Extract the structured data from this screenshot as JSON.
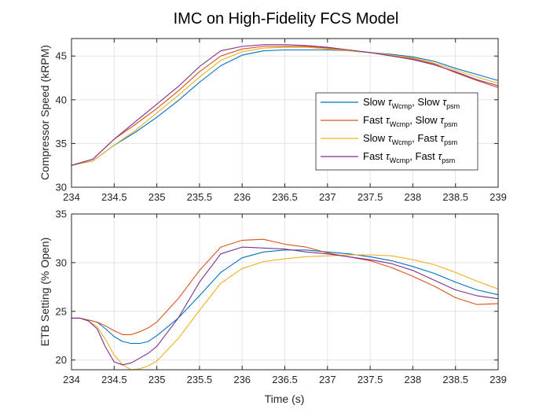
{
  "title": "IMC on High-Fidelity FCS Model",
  "colors": {
    "blue": "#0072BD",
    "orange": "#D95319",
    "yellow": "#EDB120",
    "purple": "#7E2F8E"
  },
  "legend": [
    {
      "c1": "Slow ",
      "s1": "Wcmp",
      "m": ", Slow ",
      "s2": "psm",
      "color": "#0072BD"
    },
    {
      "c1": "Fast ",
      "s1": "Wcmp",
      "m": ", Slow ",
      "s2": "psm",
      "color": "#D95319"
    },
    {
      "c1": "Slow ",
      "s1": "Wcmp",
      "m": ", Fast ",
      "s2": "psm",
      "color": "#EDB120"
    },
    {
      "c1": "Fast ",
      "s1": "Wcmp",
      "m": ", Fast ",
      "s2": "psm",
      "color": "#7E2F8E"
    }
  ],
  "chart_data": [
    {
      "type": "line",
      "title": "IMC on High-Fidelity FCS Model",
      "xlabel": "",
      "ylabel": "Compressor Speed (kRPM)",
      "xlim": [
        234,
        239
      ],
      "ylim": [
        30,
        47
      ],
      "xticks": [
        "234",
        "234.5",
        "235",
        "235.5",
        "236",
        "236.5",
        "237",
        "237.5",
        "238",
        "238.5",
        "239"
      ],
      "yticks": [
        "30",
        "35",
        "40",
        "45"
      ],
      "yticks_values": [
        30,
        35,
        40,
        45
      ],
      "grid": true,
      "legend_position": "inside-right",
      "x": [
        234,
        234.25,
        234.5,
        234.75,
        235,
        235.25,
        235.5,
        235.75,
        236,
        236.25,
        236.5,
        236.75,
        237,
        237.25,
        237.5,
        237.75,
        238,
        238.25,
        238.5,
        238.75,
        239
      ],
      "series": [
        {
          "name": "Slow Wcmp, Slow psm",
          "color": "#0072BD",
          "values": [
            32.5,
            33,
            34.8,
            36.3,
            38,
            39.9,
            42,
            43.9,
            45.1,
            45.6,
            45.7,
            45.7,
            45.7,
            45.6,
            45.4,
            45.2,
            44.9,
            44.4,
            43.6,
            42.9,
            42.2
          ]
        },
        {
          "name": "Fast Wcmp, Slow psm",
          "color": "#D95319",
          "values": [
            32.5,
            33.2,
            35.5,
            37.2,
            39,
            41,
            43.2,
            45,
            45.8,
            46.1,
            46.1,
            46.1,
            45.9,
            45.7,
            45.4,
            45.1,
            44.7,
            44.1,
            43.1,
            42.2,
            41.4
          ]
        },
        {
          "name": "Slow Wcmp, Fast psm",
          "color": "#EDB120",
          "values": [
            32.5,
            33,
            34.8,
            36.5,
            38.5,
            40.5,
            42.6,
            44.5,
            45.5,
            45.9,
            46,
            46,
            45.8,
            45.6,
            45.4,
            45.1,
            44.8,
            44.2,
            43.4,
            42.6,
            41.9
          ]
        },
        {
          "name": "Fast Wcmp, Fast psm",
          "color": "#7E2F8E",
          "values": [
            32.5,
            33.2,
            35.5,
            37.5,
            39.5,
            41.5,
            43.8,
            45.6,
            46.1,
            46.3,
            46.3,
            46.2,
            46,
            45.7,
            45.4,
            45,
            44.6,
            44,
            43.2,
            42.3,
            41.6
          ]
        }
      ]
    },
    {
      "type": "line",
      "xlabel": "Time (s)",
      "ylabel": "ETB Setting (% Open)",
      "xlim": [
        234,
        239
      ],
      "ylim": [
        19,
        35
      ],
      "xticks": [
        "234",
        "234.5",
        "235",
        "235.5",
        "236",
        "236.5",
        "237",
        "237.5",
        "238",
        "238.5",
        "239"
      ],
      "yticks": [
        "20",
        "25",
        "30",
        "35"
      ],
      "yticks_values": [
        20,
        25,
        30,
        35
      ],
      "grid": true,
      "x": [
        234,
        234.1,
        234.2,
        234.3,
        234.4,
        234.5,
        234.6,
        234.7,
        234.8,
        234.9,
        235,
        235.25,
        235.5,
        235.75,
        236,
        236.25,
        236.5,
        236.75,
        237,
        237.25,
        237.5,
        237.75,
        238,
        238.25,
        238.5,
        238.75,
        239
      ],
      "series": [
        {
          "name": "Slow Wcmp, Slow psm",
          "color": "#0072BD",
          "values": [
            24.3,
            24.3,
            24.1,
            23.9,
            23.2,
            22.4,
            21.9,
            21.7,
            21.7,
            21.9,
            22.5,
            24.3,
            26.6,
            29,
            30.5,
            31.1,
            31.3,
            31.3,
            31.1,
            30.9,
            30.6,
            30.2,
            29.6,
            28.9,
            28,
            27.2,
            26.7
          ]
        },
        {
          "name": "Fast Wcmp, Slow psm",
          "color": "#D95319",
          "values": [
            24.3,
            24.3,
            24.1,
            23.9,
            23.5,
            23,
            22.6,
            22.6,
            22.9,
            23.3,
            23.9,
            26.3,
            29.2,
            31.6,
            32.3,
            32.4,
            31.9,
            31.6,
            31,
            30.6,
            30.2,
            29.5,
            28.6,
            27.6,
            26.4,
            25.7,
            25.8
          ]
        },
        {
          "name": "Slow Wcmp, Fast psm",
          "color": "#EDB120",
          "values": [
            24.3,
            24.3,
            24,
            23.4,
            22.1,
            20.5,
            19.5,
            19,
            19.1,
            19.4,
            19.9,
            22.2,
            25.1,
            27.9,
            29.4,
            30.1,
            30.4,
            30.6,
            30.7,
            30.8,
            30.8,
            30.7,
            30.3,
            29.8,
            29,
            28.1,
            27.3
          ]
        },
        {
          "name": "Fast Wcmp, Fast psm",
          "color": "#7E2F8E",
          "values": [
            24.3,
            24.3,
            24,
            23.2,
            21.3,
            19.8,
            19.5,
            19.7,
            20.2,
            20.7,
            21.4,
            24.3,
            28,
            30.9,
            31.6,
            31.5,
            31.4,
            31.1,
            30.9,
            30.6,
            30.3,
            29.9,
            29.2,
            28.2,
            27.2,
            26.6,
            26.3
          ]
        }
      ]
    }
  ]
}
